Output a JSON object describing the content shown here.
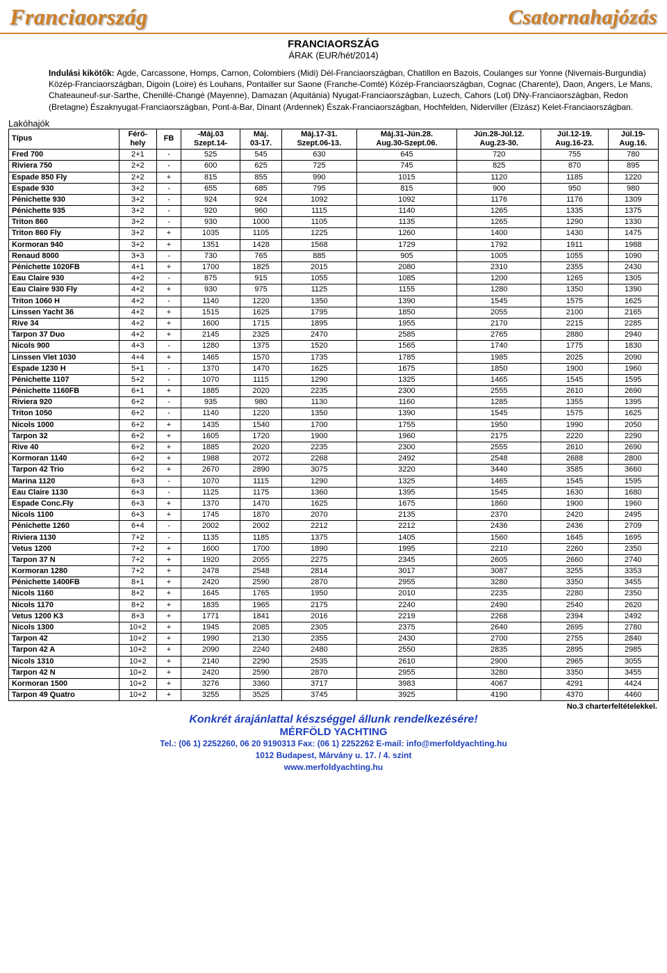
{
  "banner": {
    "left": "Franciaország",
    "right": "Csatornahajózás"
  },
  "title": "FRANCIAORSZÁG",
  "subtitle": "ÁRAK (EUR/hét/2014)",
  "intro_label": "Indulási kikötők: ",
  "intro_text": "Agde, Carcassone, Homps, Carnon, Colombiers (Midi) Dél-Franciaországban, Chatillon en Bazois, Coulanges sur Yonne (Nivernais-Burgundia) Közép-Franciaországban, Digoin (Loire) és Louhans, Pontailler sur Saone (Franche-Comté) Közép-Franciaországban, Cognac (Charente), Daon, Angers, Le Mans, Chateauneuf-sur-Sarthe, Chenillé-Changé (Mayenne), Damazan (Aquitánia) Nyugat-Franciaországban, Luzech, Cahors (Lot) DNy-Franciaországban, Redon (Bretagne) Északnyugat-Franciaországban, Pont-á-Bar, Dinant (Ardennek) Észak-Franciaországban, Hochfelden, Niderviller (Elzász) Kelet-Franciaországban.",
  "section_label": "Lakóhajók",
  "table": {
    "columns": [
      {
        "l1": "Típus",
        "l2": ""
      },
      {
        "l1": "Férő-",
        "l2": "hely"
      },
      {
        "l1": "FB",
        "l2": ""
      },
      {
        "l1": "-Máj.03",
        "l2": "Szept.14-"
      },
      {
        "l1": "Máj.",
        "l2": "03-17."
      },
      {
        "l1": "Máj.17-31.",
        "l2": "Szept.06-13."
      },
      {
        "l1": "Máj.31-Jún.28.",
        "l2": "Aug.30-Szept.06."
      },
      {
        "l1": "Jún.28-Júl.12.",
        "l2": "Aug.23-30."
      },
      {
        "l1": "Júl.12-19.",
        "l2": "Aug.16-23."
      },
      {
        "l1": "Júl.19-",
        "l2": "Aug.16."
      }
    ],
    "rows": [
      [
        "Fred 700",
        "2+1",
        "-",
        "525",
        "545",
        "630",
        "645",
        "720",
        "755",
        "780"
      ],
      [
        "Riviera 750",
        "2+2",
        "-",
        "600",
        "625",
        "725",
        "745",
        "825",
        "870",
        "895"
      ],
      [
        "Espade 850 Fly",
        "2+2",
        "+",
        "815",
        "855",
        "990",
        "1015",
        "1120",
        "1185",
        "1220"
      ],
      [
        "Espade 930",
        "3+2",
        "-",
        "655",
        "685",
        "795",
        "815",
        "900",
        "950",
        "980"
      ],
      [
        "Pénichette 930",
        "3+2",
        "-",
        "924",
        "924",
        "1092",
        "1092",
        "1176",
        "1176",
        "1309"
      ],
      [
        "Pénichette 935",
        "3+2",
        "-",
        "920",
        "960",
        "1115",
        "1140",
        "1265",
        "1335",
        "1375"
      ],
      [
        "Triton 860",
        "3+2",
        "-",
        "930",
        "1000",
        "1105",
        "1135",
        "1265",
        "1290",
        "1330"
      ],
      [
        "Triton 860 Fly",
        "3+2",
        "+",
        "1035",
        "1105",
        "1225",
        "1260",
        "1400",
        "1430",
        "1475"
      ],
      [
        "Kormoran 940",
        "3+2",
        "+",
        "1351",
        "1428",
        "1568",
        "1729",
        "1792",
        "1911",
        "1988"
      ],
      [
        "Renaud 8000",
        "3+3",
        "-",
        "730",
        "765",
        "885",
        "905",
        "1005",
        "1055",
        "1090"
      ],
      [
        "Pénichette 1020FB",
        "4+1",
        "+",
        "1700",
        "1825",
        "2015",
        "2080",
        "2310",
        "2355",
        "2430"
      ],
      [
        "Eau Claire 930",
        "4+2",
        "-",
        "875",
        "915",
        "1055",
        "1085",
        "1200",
        "1265",
        "1305"
      ],
      [
        "Eau Claire 930 Fly",
        "4+2",
        "+",
        "930",
        "975",
        "1125",
        "1155",
        "1280",
        "1350",
        "1390"
      ],
      [
        "Triton 1060 H",
        "4+2",
        "-",
        "1140",
        "1220",
        "1350",
        "1390",
        "1545",
        "1575",
        "1625"
      ],
      [
        "Linssen Yacht 36",
        "4+2",
        "+",
        "1515",
        "1625",
        "1795",
        "1850",
        "2055",
        "2100",
        "2165"
      ],
      [
        "Rive 34",
        "4+2",
        "+",
        "1600",
        "1715",
        "1895",
        "1955",
        "2170",
        "2215",
        "2285"
      ],
      [
        "Tarpon 37 Duo",
        "4+2",
        "+",
        "2145",
        "2325",
        "2470",
        "2585",
        "2765",
        "2880",
        "2940"
      ],
      [
        "Nicols 900",
        "4+3",
        "-",
        "1280",
        "1375",
        "1520",
        "1565",
        "1740",
        "1775",
        "1830"
      ],
      [
        "Linssen Vlet 1030",
        "4+4",
        "+",
        "1465",
        "1570",
        "1735",
        "1785",
        "1985",
        "2025",
        "2090"
      ],
      [
        "Espade 1230 H",
        "5+1",
        "-",
        "1370",
        "1470",
        "1625",
        "1675",
        "1850",
        "1900",
        "1960"
      ],
      [
        "Pénichette 1107",
        "5+2",
        "-",
        "1070",
        "1115",
        "1290",
        "1325",
        "1465",
        "1545",
        "1595"
      ],
      [
        "Pénichette 1160FB",
        "6+1",
        "+",
        "1885",
        "2020",
        "2235",
        "2300",
        "2555",
        "2610",
        "2690"
      ],
      [
        "Riviera 920",
        "6+2",
        "-",
        "935",
        "980",
        "1130",
        "1160",
        "1285",
        "1355",
        "1395"
      ],
      [
        "Triton 1050",
        "6+2",
        "-",
        "1140",
        "1220",
        "1350",
        "1390",
        "1545",
        "1575",
        "1625"
      ],
      [
        "Nicols 1000",
        "6+2",
        "+",
        "1435",
        "1540",
        "1700",
        "1755",
        "1950",
        "1990",
        "2050"
      ],
      [
        "Tarpon 32",
        "6+2",
        "+",
        "1605",
        "1720",
        "1900",
        "1960",
        "2175",
        "2220",
        "2290"
      ],
      [
        "Rive 40",
        "6+2",
        "+",
        "1885",
        "2020",
        "2235",
        "2300",
        "2555",
        "2610",
        "2690"
      ],
      [
        "Kormoran 1140",
        "6+2",
        "+",
        "1988",
        "2072",
        "2268",
        "2492",
        "2548",
        "2688",
        "2800"
      ],
      [
        "Tarpon 42 Trio",
        "6+2",
        "+",
        "2670",
        "2890",
        "3075",
        "3220",
        "3440",
        "3585",
        "3660"
      ],
      [
        "Marina 1120",
        "6+3",
        "-",
        "1070",
        "1115",
        "1290",
        "1325",
        "1465",
        "1545",
        "1595"
      ],
      [
        "Eau Claire 1130",
        "6+3",
        "-",
        "1125",
        "1175",
        "1360",
        "1395",
        "1545",
        "1630",
        "1680"
      ],
      [
        "Espade Conc.Fly",
        "6+3",
        "+",
        "1370",
        "1470",
        "1625",
        "1675",
        "1860",
        "1900",
        "1960"
      ],
      [
        "Nicols 1100",
        "6+3",
        "+",
        "1745",
        "1870",
        "2070",
        "2135",
        "2370",
        "2420",
        "2495"
      ],
      [
        "Pénichette 1260",
        "6+4",
        "-",
        "2002",
        "2002",
        "2212",
        "2212",
        "2436",
        "2436",
        "2709"
      ],
      [
        "Riviera 1130",
        "7+2",
        "-",
        "1135",
        "1185",
        "1375",
        "1405",
        "1560",
        "1645",
        "1695"
      ],
      [
        "Vetus 1200",
        "7+2",
        "+",
        "1600",
        "1700",
        "1890",
        "1995",
        "2210",
        "2260",
        "2350"
      ],
      [
        "Tarpon 37 N",
        "7+2",
        "+",
        "1920",
        "2055",
        "2275",
        "2345",
        "2605",
        "2660",
        "2740"
      ],
      [
        "Kormoran 1280",
        "7+2",
        "+",
        "2478",
        "2548",
        "2814",
        "3017",
        "3087",
        "3255",
        "3353"
      ],
      [
        "Pénichette 1400FB",
        "8+1",
        "+",
        "2420",
        "2590",
        "2870",
        "2955",
        "3280",
        "3350",
        "3455"
      ],
      [
        "Nicols 1160",
        "8+2",
        "+",
        "1645",
        "1765",
        "1950",
        "2010",
        "2235",
        "2280",
        "2350"
      ],
      [
        "Nicols 1170",
        "8+2",
        "+",
        "1835",
        "1965",
        "2175",
        "2240",
        "2490",
        "2540",
        "2620"
      ],
      [
        "Vetus 1200 K3",
        "8+3",
        "+",
        "1771",
        "1841",
        "2016",
        "2219",
        "2268",
        "2394",
        "2492"
      ],
      [
        "Nicols 1300",
        "10+2",
        "+",
        "1945",
        "2085",
        "2305",
        "2375",
        "2640",
        "2695",
        "2780"
      ],
      [
        "Tarpon 42",
        "10+2",
        "+",
        "1990",
        "2130",
        "2355",
        "2430",
        "2700",
        "2755",
        "2840"
      ],
      [
        "Tarpon 42 A",
        "10+2",
        "+",
        "2090",
        "2240",
        "2480",
        "2550",
        "2835",
        "2895",
        "2985"
      ],
      [
        "Nicols 1310",
        "10+2",
        "+",
        "2140",
        "2290",
        "2535",
        "2610",
        "2900",
        "2965",
        "3055"
      ],
      [
        "Tarpon 42 N",
        "10+2",
        "+",
        "2420",
        "2590",
        "2870",
        "2955",
        "3280",
        "3350",
        "3455"
      ],
      [
        "Kormoran 1500",
        "10+2",
        "+",
        "3276",
        "3360",
        "3717",
        "3983",
        "4067",
        "4291",
        "4424"
      ],
      [
        "Tarpon 49 Quatro",
        "10+2",
        "+",
        "3255",
        "3525",
        "3745",
        "3925",
        "4190",
        "4370",
        "4460"
      ]
    ]
  },
  "footnote": "No.3 charterfeltételekkel.",
  "cta": "Konkrét árajánlattal készséggel állunk rendelkezésére!",
  "company": "MÉRFÖLD YACHTING",
  "contact1": "Tel.: (06 1) 2252260, 06 20 9190313 Fax: (06 1) 2252262 E-mail: info@merfoldyachting.hu",
  "contact2": "1012 Budapest, Márvány u. 17. / 4. szint",
  "contact3": "www.merfoldyachting.hu",
  "colors": {
    "accent": "#d08028",
    "link": "#1f3fbf"
  }
}
